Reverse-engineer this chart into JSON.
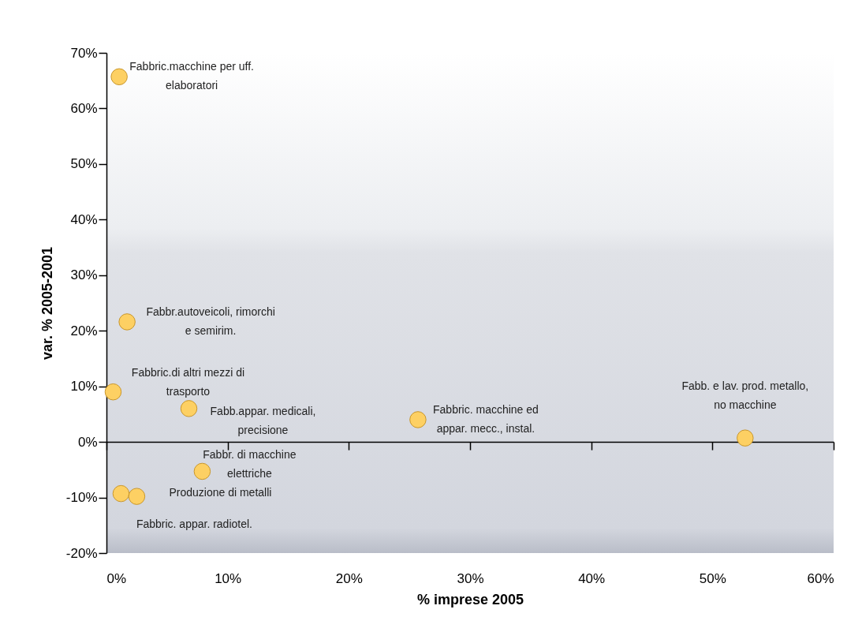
{
  "chart_data": {
    "type": "scatter",
    "xlabel": "% imprese 2005",
    "ylabel": "var. % 2005-2001",
    "x": [
      1.05,
      1.7,
      0.55,
      6.8,
      7.9,
      1.2,
      2.5,
      25.7,
      52.7
    ],
    "values": [
      65.7,
      21.6,
      9.0,
      6.0,
      -5.3,
      -9.3,
      -9.8,
      4.0,
      0.7
    ],
    "color": "#fdd063",
    "marker": "circle",
    "xlim": [
      0,
      60
    ],
    "ylim": [
      -20,
      70
    ],
    "xticks": [
      {
        "value": 0,
        "label": "0%"
      },
      {
        "value": 10,
        "label": "10%"
      },
      {
        "value": 20,
        "label": "20%"
      },
      {
        "value": 30,
        "label": "30%"
      },
      {
        "value": 40,
        "label": "40%"
      },
      {
        "value": 50,
        "label": "50%"
      },
      {
        "value": 60,
        "label": "60%"
      }
    ],
    "yticks": [
      {
        "value": -20,
        "label": "-20%"
      },
      {
        "value": -10,
        "label": "-10%"
      },
      {
        "value": 0,
        "label": "0%"
      },
      {
        "value": 10,
        "label": "10%"
      },
      {
        "value": 20,
        "label": "20%"
      },
      {
        "value": 30,
        "label": "30%"
      },
      {
        "value": 40,
        "label": "40%"
      },
      {
        "value": 50,
        "label": "50%"
      },
      {
        "value": 60,
        "label": "60%"
      },
      {
        "value": 70,
        "label": "70%"
      }
    ],
    "annotations": [
      {
        "text": "Fabbric.macchine per uff.\nelaboratori",
        "x": 1.05,
        "y": 65.7
      },
      {
        "text": "Fabbr.autoveicoli, rimorchi\ne semirim.",
        "x": 1.7,
        "y": 21.6
      },
      {
        "text": "Fabbric.di altri mezzi di\ntrasporto",
        "x": 0.55,
        "y": 9.0
      },
      {
        "text": "Fabb.appar. medicali,\nprecisione",
        "x": 6.8,
        "y": 6.0
      },
      {
        "text": "Fabbr. di macchine\nelettriche",
        "x": 7.9,
        "y": -5.3
      },
      {
        "text": "Fabbric. appar. radiotel.",
        "x": 1.2,
        "y": -9.3
      },
      {
        "text": "Produzione di metalli",
        "x": 2.5,
        "y": -9.8
      },
      {
        "text": "Fabbric. macchine ed\nappar. mecc., instal.",
        "x": 25.7,
        "y": 4.0
      },
      {
        "text": "Fabb. e lav. prod. metallo,\nno macchine",
        "x": 52.7,
        "y": 0.7
      }
    ]
  }
}
